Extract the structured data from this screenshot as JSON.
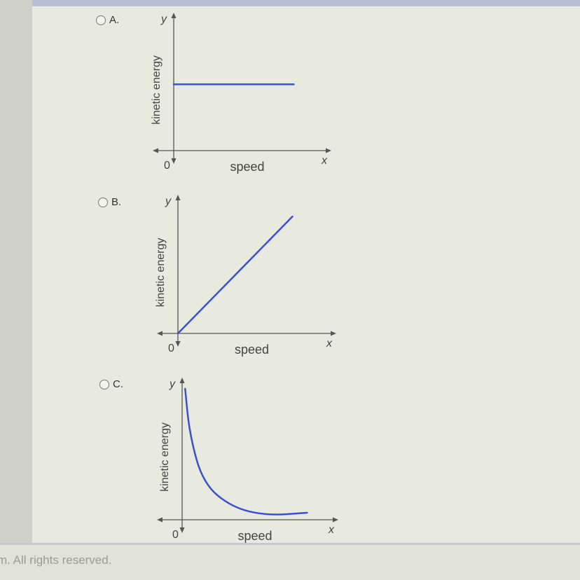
{
  "footer": {
    "text": "m. All rights reserved."
  },
  "options": [
    {
      "label": "A."
    },
    {
      "label": "B."
    },
    {
      "label": "C."
    }
  ],
  "colors": {
    "curve": "#3b4fd0",
    "axis": "#555555"
  },
  "chart_data": [
    {
      "type": "line",
      "xlabel": "speed",
      "ylabel": "kinetic energy",
      "x_axis_letter": "x",
      "y_axis_letter": "y",
      "origin_label": "0",
      "xlim": [
        0,
        10
      ],
      "ylim": [
        0,
        10
      ],
      "series": [
        {
          "points": [
            [
              0,
              4.9
            ],
            [
              7.9,
              4.9
            ]
          ]
        }
      ]
    },
    {
      "type": "line",
      "xlabel": "speed",
      "ylabel": "kinetic energy",
      "x_axis_letter": "x",
      "y_axis_letter": "y",
      "origin_label": "0",
      "xlim": [
        0,
        10
      ],
      "ylim": [
        0,
        10
      ],
      "series": [
        {
          "points": [
            [
              0,
              0
            ],
            [
              7.5,
              8.6
            ]
          ]
        }
      ]
    },
    {
      "type": "line",
      "xlabel": "speed",
      "ylabel": "kinetic energy",
      "x_axis_letter": "x",
      "y_axis_letter": "y",
      "origin_label": "0",
      "xlim": [
        0,
        10
      ],
      "ylim": [
        0,
        10
      ],
      "series": [
        {
          "points": [
            [
              0.2,
              9.4
            ],
            [
              0.5,
              6.1
            ],
            [
              1.4,
              2.6
            ],
            [
              3.3,
              0.9
            ],
            [
              5.6,
              0.3
            ],
            [
              8.3,
              0.5
            ]
          ]
        }
      ]
    }
  ]
}
